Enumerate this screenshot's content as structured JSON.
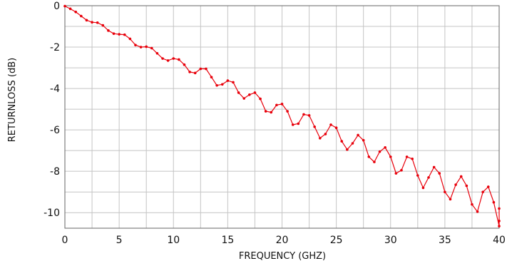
{
  "chart_data": {
    "type": "line",
    "title": "",
    "xlabel": "FREQUENCY (GHZ)",
    "ylabel": "RETURNLOSS (dB)",
    "xlim": [
      0,
      40
    ],
    "ylim": [
      -10.75,
      0
    ],
    "x_ticks": [
      0,
      5,
      10,
      15,
      20,
      25,
      30,
      35,
      40
    ],
    "x_tick_labels": [
      "0",
      "5",
      "10",
      "15",
      "20",
      "25",
      "30",
      "35",
      "40"
    ],
    "y_ticks": [
      0,
      -2,
      -4,
      -6,
      -8,
      -10
    ],
    "y_tick_labels": [
      "0",
      "-2",
      "-4",
      "-6",
      "-8",
      "-10"
    ],
    "grid": true,
    "series": [
      {
        "color": "#e8000b",
        "marker": "dot",
        "points": [
          [
            0,
            -0.02
          ],
          [
            0.5,
            -0.15
          ],
          [
            1,
            -0.3
          ],
          [
            1.5,
            -0.5
          ],
          [
            2,
            -0.7
          ],
          [
            2.5,
            -0.8
          ],
          [
            3,
            -0.82
          ],
          [
            3.5,
            -0.95
          ],
          [
            4,
            -1.2
          ],
          [
            4.5,
            -1.35
          ],
          [
            5,
            -1.38
          ],
          [
            5.5,
            -1.4
          ],
          [
            6,
            -1.6
          ],
          [
            6.5,
            -1.9
          ],
          [
            7,
            -2.0
          ],
          [
            7.5,
            -1.98
          ],
          [
            8,
            -2.05
          ],
          [
            8.5,
            -2.3
          ],
          [
            9,
            -2.55
          ],
          [
            9.5,
            -2.65
          ],
          [
            10,
            -2.55
          ],
          [
            10.5,
            -2.6
          ],
          [
            11,
            -2.85
          ],
          [
            11.5,
            -3.2
          ],
          [
            12,
            -3.25
          ],
          [
            12.5,
            -3.05
          ],
          [
            13,
            -3.05
          ],
          [
            13.5,
            -3.45
          ],
          [
            14,
            -3.85
          ],
          [
            14.5,
            -3.8
          ],
          [
            15,
            -3.62
          ],
          [
            15.5,
            -3.7
          ],
          [
            16,
            -4.2
          ],
          [
            16.5,
            -4.48
          ],
          [
            17,
            -4.3
          ],
          [
            17.5,
            -4.2
          ],
          [
            18,
            -4.5
          ],
          [
            18.5,
            -5.1
          ],
          [
            19,
            -5.15
          ],
          [
            19.5,
            -4.8
          ],
          [
            20,
            -4.75
          ],
          [
            20.5,
            -5.1
          ],
          [
            21,
            -5.75
          ],
          [
            21.5,
            -5.7
          ],
          [
            22,
            -5.25
          ],
          [
            22.5,
            -5.3
          ],
          [
            23,
            -5.85
          ],
          [
            23.5,
            -6.4
          ],
          [
            24,
            -6.2
          ],
          [
            24.5,
            -5.75
          ],
          [
            25,
            -5.9
          ],
          [
            25.5,
            -6.55
          ],
          [
            26,
            -6.95
          ],
          [
            26.5,
            -6.65
          ],
          [
            27,
            -6.25
          ],
          [
            27.5,
            -6.5
          ],
          [
            28,
            -7.3
          ],
          [
            28.5,
            -7.55
          ],
          [
            29,
            -7.05
          ],
          [
            29.5,
            -6.85
          ],
          [
            30,
            -7.3
          ],
          [
            30.5,
            -8.1
          ],
          [
            31,
            -7.95
          ],
          [
            31.5,
            -7.3
          ],
          [
            32,
            -7.4
          ],
          [
            32.5,
            -8.2
          ],
          [
            33,
            -8.8
          ],
          [
            33.5,
            -8.3
          ],
          [
            34,
            -7.8
          ],
          [
            34.5,
            -8.1
          ],
          [
            35,
            -9.0
          ],
          [
            35.5,
            -9.35
          ],
          [
            36,
            -8.65
          ],
          [
            36.5,
            -8.25
          ],
          [
            37,
            -8.7
          ],
          [
            37.5,
            -9.6
          ],
          [
            38,
            -9.95
          ],
          [
            38.5,
            -9.0
          ],
          [
            39,
            -8.75
          ],
          [
            39.5,
            -9.5
          ],
          [
            40,
            -10.65
          ],
          [
            40.3,
            -10.4
          ],
          [
            40.5,
            -9.8
          ]
        ]
      }
    ]
  }
}
